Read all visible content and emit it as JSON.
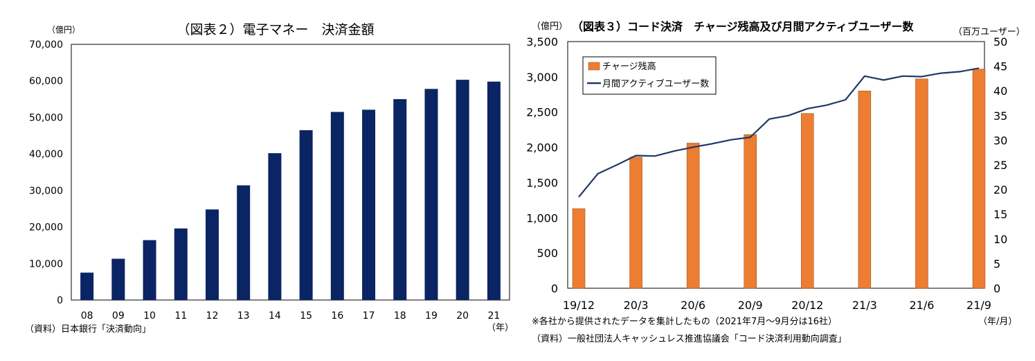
{
  "chart_data": [
    {
      "type": "bar",
      "title": "（図表２）電子マネー　決済金額",
      "unit_label": "（億円）",
      "x_unit_label": "（年）",
      "source": "（資料）日本銀行「決済動向」",
      "categories": [
        "08",
        "09",
        "10",
        "11",
        "12",
        "13",
        "14",
        "15",
        "16",
        "17",
        "18",
        "19",
        "20",
        "21"
      ],
      "values": [
        7500,
        11300,
        16400,
        19600,
        24800,
        31400,
        40200,
        46500,
        51500,
        52100,
        55000,
        57800,
        60300,
        59800
      ],
      "ylim": [
        0,
        70000
      ],
      "y_ticks": [
        "0",
        "10,000",
        "20,000",
        "30,000",
        "40,000",
        "50,000",
        "60,000",
        "70,000"
      ],
      "bar_color": "#0b2463"
    },
    {
      "type": "bar+line",
      "title": "（図表３）コード決済　チャージ残高及び月間アクティブユーザー数",
      "left_unit_label": "（億円）",
      "right_unit_label": "（百万ユーザー）",
      "x_unit_label": "（年/月）",
      "note": "※各社から提供されたデータを集計したもの（2021年7月～9月分は16社）",
      "source": "（資料）一般社団法人キャッシュレス推進協議会「コード決済利用動向調査」",
      "x_tick_labels": [
        "19/12",
        "20/3",
        "20/6",
        "20/9",
        "20/12",
        "21/3",
        "21/6",
        "21/9"
      ],
      "left_ylim": [
        0,
        3500
      ],
      "right_ylim": [
        0,
        50
      ],
      "left_ticks": [
        "0",
        "500",
        "1,000",
        "1,500",
        "2,000",
        "2,500",
        "3,000",
        "3,500"
      ],
      "right_ticks": [
        "0",
        "5",
        "10",
        "15",
        "20",
        "25",
        "30",
        "35",
        "40",
        "45",
        "50"
      ],
      "series": [
        {
          "name": "チャージ残高",
          "kind": "bar",
          "axis": "left",
          "color": "#ed7d31",
          "x": [
            "19/12",
            "20/3",
            "20/6",
            "20/9",
            "20/12",
            "21/3",
            "21/6",
            "21/9"
          ],
          "values": [
            1130,
            1860,
            2060,
            2180,
            2480,
            2800,
            2970,
            3110
          ]
        },
        {
          "name": "月間アクティブユーザー数",
          "kind": "line",
          "axis": "right",
          "color": "#1f3864",
          "x": [
            "19/12",
            "20/1",
            "20/2",
            "20/3",
            "20/4",
            "20/5",
            "20/6",
            "20/7",
            "20/8",
            "20/9",
            "20/10",
            "20/11",
            "20/12",
            "21/1",
            "21/2",
            "21/3",
            "21/4",
            "21/5",
            "21/6",
            "21/7",
            "21/8",
            "21/9"
          ],
          "values": [
            18.5,
            23.2,
            25.0,
            26.9,
            26.8,
            27.8,
            28.6,
            29.3,
            30.1,
            30.6,
            34.3,
            35.0,
            36.4,
            37.1,
            38.2,
            43.0,
            42.2,
            43.0,
            42.9,
            43.6,
            43.9,
            44.6
          ]
        }
      ]
    }
  ]
}
